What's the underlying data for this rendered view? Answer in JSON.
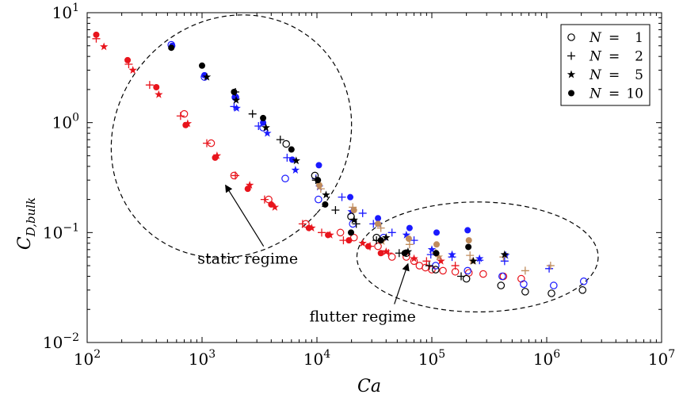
{
  "chart_data": {
    "type": "scatter",
    "xscale": "log",
    "yscale": "log",
    "xlim": [
      100,
      10000000
    ],
    "ylim": [
      0.01,
      10
    ],
    "xlabel": "Ca",
    "ylabel": "C",
    "ylabel_sub": "D,bulk",
    "grid": false,
    "legend_position": "top-right",
    "xticks": [
      {
        "value": 100,
        "base": "10",
        "exp": "2"
      },
      {
        "value": 1000,
        "base": "10",
        "exp": "3"
      },
      {
        "value": 10000,
        "base": "10",
        "exp": "4"
      },
      {
        "value": 100000,
        "base": "10",
        "exp": "5"
      },
      {
        "value": 1000000,
        "base": "10",
        "exp": "6"
      },
      {
        "value": 10000000,
        "base": "10",
        "exp": "7"
      }
    ],
    "yticks": [
      {
        "value": 0.01,
        "base": "10",
        "exp": "−2"
      },
      {
        "value": 0.1,
        "base": "10",
        "exp": "−1"
      },
      {
        "value": 1,
        "base": "10",
        "exp": "0"
      },
      {
        "value": 10,
        "base": "10",
        "exp": "1"
      }
    ],
    "legend": [
      {
        "marker": "circle-open",
        "prefix": "N",
        "eq": "=",
        "value": "1"
      },
      {
        "marker": "plus",
        "prefix": "N",
        "eq": "=",
        "value": "2"
      },
      {
        "marker": "star",
        "prefix": "N",
        "eq": "=",
        "value": "5"
      },
      {
        "marker": "circle-filled",
        "prefix": "N",
        "eq": "=",
        "value": "10"
      }
    ],
    "colors": {
      "red": "#e8141c",
      "blue": "#1a1aff",
      "brown": "#c08c5c",
      "black": "#000000"
    },
    "regions": [
      {
        "label": "static regime",
        "center": [
          1800,
          0.75
        ],
        "rx_decades": 1.0,
        "ry_decades": 1.15,
        "rotation_deg": 42
      },
      {
        "label": "flutter regime",
        "center": [
          250000,
          0.06
        ],
        "rx_decades": 1.05,
        "ry_decades": 0.5,
        "rotation_deg": 0
      }
    ],
    "annotations": [
      {
        "text": "static regime",
        "text_at": [
          2500,
          0.052
        ],
        "arrow_to": [
          1600,
          0.27
        ]
      },
      {
        "text": "flutter regime",
        "text_at": [
          25000,
          0.0155
        ],
        "arrow_to": [
          62000,
          0.052
        ]
      }
    ],
    "series": [
      {
        "marker": "circle-open",
        "color": "red",
        "x": [
          700,
          1200,
          1900,
          3800,
          8000,
          16000,
          21000,
          34000,
          45000,
          60000,
          70000,
          78000,
          88000,
          100000,
          125000,
          160000,
          210000,
          280000,
          420000,
          600000
        ],
        "y": [
          1.2,
          0.65,
          0.33,
          0.2,
          0.12,
          0.1,
          0.09,
          0.075,
          0.06,
          0.06,
          0.055,
          0.05,
          0.048,
          0.046,
          0.045,
          0.044,
          0.043,
          0.042,
          0.04,
          0.038
        ]
      },
      {
        "marker": "plus",
        "color": "red",
        "x": [
          120,
          230,
          350,
          650,
          1100,
          1950,
          3500,
          7500,
          11000,
          17000,
          29000,
          42000,
          90000,
          160000
        ],
        "y": [
          5.8,
          3.4,
          2.2,
          1.15,
          0.65,
          0.33,
          0.2,
          0.12,
          0.1,
          0.085,
          0.075,
          0.065,
          0.055,
          0.05
        ]
      },
      {
        "marker": "star",
        "color": "red",
        "x": [
          140,
          250,
          420,
          750,
          1350,
          2600,
          4300,
          9000,
          13000,
          25000,
          40000,
          70000,
          120000
        ],
        "y": [
          4.9,
          3.0,
          1.8,
          0.98,
          0.5,
          0.27,
          0.17,
          0.11,
          0.095,
          0.08,
          0.067,
          0.058,
          0.055
        ]
      },
      {
        "marker": "circle-filled",
        "color": "red",
        "x": [
          120,
          225,
          400,
          720,
          1300,
          2500,
          4000,
          8500,
          12500,
          19000,
          28000,
          36000
        ],
        "y": [
          6.3,
          3.7,
          2.1,
          0.95,
          0.48,
          0.25,
          0.18,
          0.11,
          0.095,
          0.085,
          0.075,
          0.065
        ]
      },
      {
        "marker": "circle-open",
        "color": "blue",
        "x": [
          540,
          1050,
          1950,
          3400,
          5300,
          10300,
          20500,
          38000,
          108000,
          205000,
          410000,
          630000,
          1150000,
          2100000
        ],
        "y": [
          5.1,
          2.6,
          1.7,
          0.9,
          0.31,
          0.2,
          0.12,
          0.09,
          0.05,
          0.045,
          0.04,
          0.034,
          0.033,
          0.036
        ]
      },
      {
        "marker": "plus",
        "color": "blue",
        "x": [
          1900,
          3100,
          5500,
          9800,
          16500,
          25000,
          31000,
          45000,
          70000,
          98000,
          150000,
          260000,
          430000,
          1050000
        ],
        "y": [
          1.4,
          0.93,
          0.48,
          0.31,
          0.21,
          0.15,
          0.12,
          0.1,
          0.085,
          0.063,
          0.06,
          0.056,
          0.055,
          0.047
        ]
      },
      {
        "marker": "star",
        "color": "blue",
        "x": [
          2000,
          3700,
          6500,
          10500,
          20000,
          34000,
          60000,
          100000,
          150000,
          260000,
          440000
        ],
        "y": [
          1.35,
          0.8,
          0.37,
          0.26,
          0.155,
          0.12,
          0.095,
          0.07,
          0.063,
          0.058,
          0.062
        ]
      },
      {
        "marker": "circle-filled",
        "color": "blue",
        "x": [
          550,
          1050,
          1950,
          3400,
          6100,
          10400,
          19500,
          34000,
          64000,
          110000,
          205000
        ],
        "y": [
          5.0,
          2.7,
          1.7,
          1.0,
          0.46,
          0.41,
          0.21,
          0.135,
          0.11,
          0.1,
          0.105
        ]
      },
      {
        "marker": "plus",
        "color": "brown",
        "x": [
          10800,
          20500,
          36000,
          64000,
          108000,
          215000,
          420000,
          650000,
          1080000
        ],
        "y": [
          0.25,
          0.17,
          0.11,
          0.078,
          0.065,
          0.062,
          0.06,
          0.045,
          0.05
        ]
      },
      {
        "marker": "circle-filled",
        "color": "brown",
        "x": [
          10500,
          21000,
          34000,
          63000,
          110000,
          210000
        ],
        "y": [
          0.27,
          0.16,
          0.12,
          0.088,
          0.078,
          0.085
        ]
      },
      {
        "marker": "star",
        "color": "brown",
        "x": [
          37000,
          115000,
          225000
        ],
        "y": [
          0.083,
          0.06,
          0.055
        ]
      },
      {
        "marker": "circle-open",
        "color": "black",
        "x": [
          5400,
          9600,
          19800,
          33000,
          60000,
          108000,
          200000,
          400000,
          650000,
          1100000,
          2050000
        ],
        "y": [
          0.64,
          0.33,
          0.14,
          0.09,
          0.065,
          0.046,
          0.038,
          0.033,
          0.029,
          0.028,
          0.03
        ]
      },
      {
        "marker": "plus",
        "color": "black",
        "x": [
          1950,
          2750,
          4800,
          9800,
          14500,
          22000,
          33000,
          52000,
          95000,
          180000
        ],
        "y": [
          1.9,
          1.2,
          0.7,
          0.3,
          0.16,
          0.12,
          0.085,
          0.065,
          0.05,
          0.04
        ]
      },
      {
        "marker": "star",
        "color": "black",
        "x": [
          1100,
          1980,
          3600,
          6600,
          12000,
          21000,
          40000,
          62000,
          230000,
          430000
        ],
        "y": [
          2.6,
          1.6,
          0.9,
          0.45,
          0.22,
          0.13,
          0.09,
          0.067,
          0.055,
          0.063
        ]
      },
      {
        "marker": "circle-filled",
        "color": "black",
        "x": [
          540,
          1000,
          1900,
          3400,
          6000,
          10200,
          11800,
          19800,
          36000,
          58000,
          109000,
          208000
        ],
        "y": [
          4.8,
          3.3,
          1.9,
          1.1,
          0.57,
          0.3,
          0.18,
          0.1,
          0.085,
          0.065,
          0.065,
          0.074
        ]
      }
    ]
  }
}
